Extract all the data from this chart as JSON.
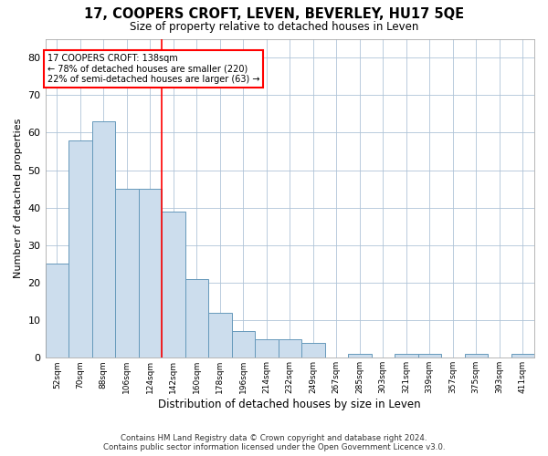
{
  "title": "17, COOPERS CROFT, LEVEN, BEVERLEY, HU17 5QE",
  "subtitle": "Size of property relative to detached houses in Leven",
  "xlabel": "Distribution of detached houses by size in Leven",
  "ylabel": "Number of detached properties",
  "bar_color": "#ccdded",
  "bar_edge_color": "#6699bb",
  "grid_color": "#b0c4d8",
  "background_color": "#ffffff",
  "annotation_line_color": "red",
  "annotation_text_line1": "17 COOPERS CROFT: 138sqm",
  "annotation_text_line2": "← 78% of detached houses are smaller (220)",
  "annotation_text_line3": "22% of semi-detached houses are larger (63) →",
  "categories": [
    "52sqm",
    "70sqm",
    "88sqm",
    "106sqm",
    "124sqm",
    "142sqm",
    "160sqm",
    "178sqm",
    "196sqm",
    "214sqm",
    "232sqm",
    "249sqm",
    "267sqm",
    "285sqm",
    "303sqm",
    "321sqm",
    "339sqm",
    "357sqm",
    "375sqm",
    "393sqm",
    "411sqm"
  ],
  "values": [
    25,
    58,
    63,
    45,
    45,
    39,
    21,
    12,
    7,
    5,
    5,
    4,
    0,
    1,
    0,
    1,
    1,
    0,
    1,
    0,
    1
  ],
  "ylim": [
    0,
    85
  ],
  "yticks": [
    0,
    10,
    20,
    30,
    40,
    50,
    60,
    70,
    80
  ],
  "vline_x": 4.5,
  "footer_line1": "Contains HM Land Registry data © Crown copyright and database right 2024.",
  "footer_line2": "Contains public sector information licensed under the Open Government Licence v3.0."
}
